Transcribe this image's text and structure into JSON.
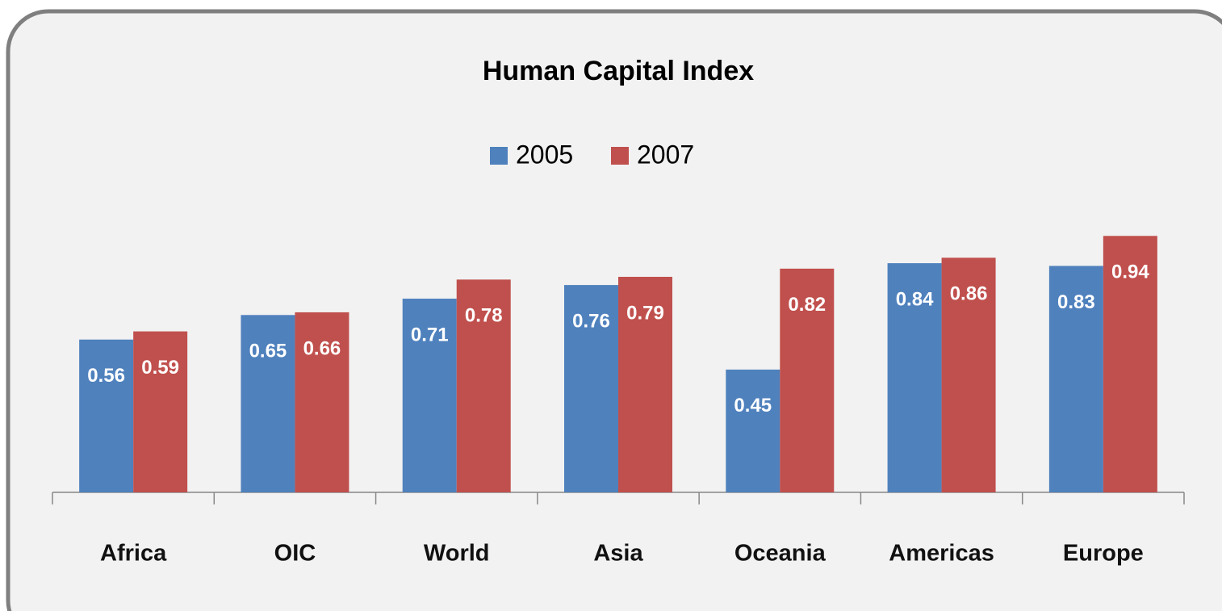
{
  "chart_data": {
    "type": "bar",
    "title": "Human Capital Index",
    "categories": [
      "Africa",
      "OIC",
      "World",
      "Asia",
      "Oceania",
      "Americas",
      "Europe"
    ],
    "series": [
      {
        "name": "2005",
        "color": "#4f81bd",
        "values": [
          0.56,
          0.65,
          0.71,
          0.76,
          0.45,
          0.84,
          0.83
        ]
      },
      {
        "name": "2007",
        "color": "#c0504d",
        "values": [
          0.59,
          0.66,
          0.78,
          0.79,
          0.82,
          0.86,
          0.94
        ]
      }
    ],
    "ylim": [
      0,
      1
    ],
    "legend": "top"
  }
}
